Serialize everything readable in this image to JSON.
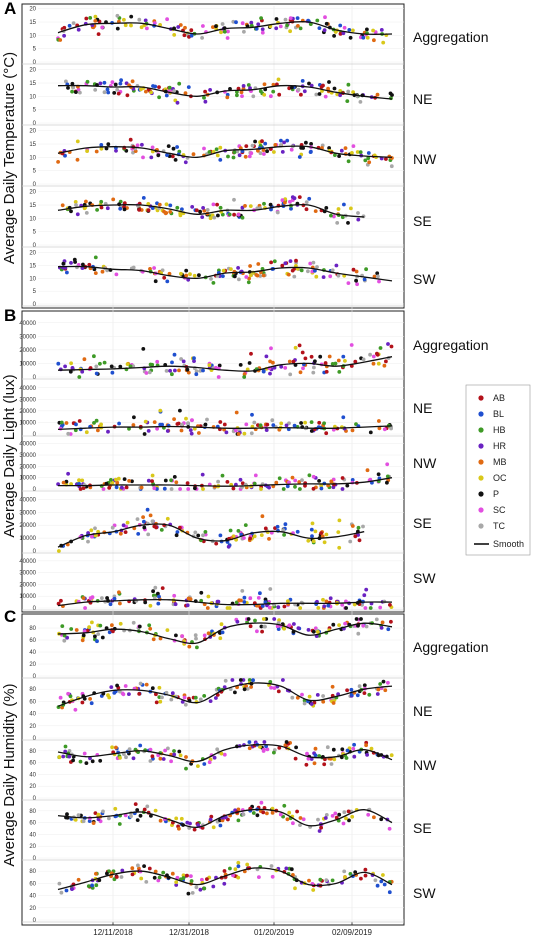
{
  "figure": {
    "legend": {
      "items": [
        {
          "label": "AB",
          "color": "#b3111a"
        },
        {
          "label": "BL",
          "color": "#1f4fcf"
        },
        {
          "label": "HB",
          "color": "#3e9a26"
        },
        {
          "label": "HR",
          "color": "#6a22c2"
        },
        {
          "label": "MB",
          "color": "#e06a12"
        },
        {
          "label": "OC",
          "color": "#d9c81a"
        },
        {
          "label": "P",
          "color": "#111111"
        },
        {
          "label": "SC",
          "color": "#e24fe0"
        },
        {
          "label": "TC",
          "color": "#a8a8a8"
        }
      ],
      "smooth_label": "Smooth"
    },
    "x_tick_labels": [
      "12/11/2018",
      "12/31/2018",
      "01/20/2019",
      "02/09/2019"
    ]
  },
  "chart_data": [
    {
      "type": "scatter",
      "panel": "A",
      "ylabel": "Average Daily Temperature (°C)",
      "rows": [
        "Aggregation",
        "NE",
        "NW",
        "SE",
        "SW"
      ],
      "yticks": [
        0,
        5,
        10,
        15,
        20
      ],
      "ylim": [
        0,
        21
      ],
      "x": [
        "2018-11-27",
        "2018-12-04",
        "2018-12-11",
        "2018-12-18",
        "2018-12-25",
        "2018-12-31",
        "2019-01-07",
        "2019-01-14",
        "2019-01-20",
        "2019-01-27",
        "2019-02-03",
        "2019-02-09",
        "2019-02-16"
      ],
      "smooth": [
        [
          11,
          14,
          14.5,
          14.5,
          12.5,
          10.5,
          12.5,
          13,
          14.5,
          15,
          12,
          10.5,
          10.5
        ],
        [
          14,
          14,
          13.5,
          13.5,
          11.5,
          10,
          12,
          12.5,
          14,
          13.5,
          11.5,
          10,
          9
        ],
        [
          11.5,
          13.5,
          14,
          13.5,
          11.5,
          10,
          12.5,
          13,
          14,
          14,
          11.5,
          10.5,
          10
        ],
        [
          13,
          14.5,
          15,
          15,
          13.5,
          11.5,
          13,
          13,
          14.5,
          15,
          11.5,
          10.5,
          null
        ],
        [
          14.5,
          14.5,
          13.5,
          13,
          11,
          10,
          12,
          12.5,
          14,
          14,
          12,
          10.5,
          9
        ]
      ],
      "y_scatter_range": [
        4,
        20
      ],
      "grid": true
    },
    {
      "type": "scatter",
      "panel": "B",
      "ylabel": "Average Daily Light (lux)",
      "rows": [
        "Aggregation",
        "NE",
        "NW",
        "SE",
        "SW"
      ],
      "yticks": [
        0,
        10000,
        20000,
        30000,
        40000
      ],
      "ylim": [
        0,
        45000
      ],
      "x": [
        "2018-11-27",
        "2018-12-04",
        "2018-12-11",
        "2018-12-18",
        "2018-12-25",
        "2018-12-31",
        "2019-01-07",
        "2019-01-14",
        "2019-01-20",
        "2019-01-27",
        "2019-02-03",
        "2019-02-09",
        "2019-02-16"
      ],
      "smooth": [
        [
          5000,
          5500,
          6000,
          7000,
          8000,
          7000,
          5000,
          4500,
          9000,
          10000,
          8000,
          11000,
          15000
        ],
        [
          4000,
          5000,
          6000,
          6000,
          6500,
          6000,
          5000,
          5000,
          5500,
          5000,
          5000,
          6000,
          7000
        ],
        [
          3000,
          3000,
          3500,
          3500,
          3500,
          3000,
          2500,
          3000,
          4000,
          4500,
          4500,
          6000,
          10000
        ],
        [
          3000,
          12000,
          15000,
          20000,
          20000,
          10000,
          8000,
          14000,
          15000,
          10000,
          11000,
          15000,
          null
        ],
        [
          2000,
          5000,
          6000,
          7000,
          7000,
          5000,
          3000,
          3000,
          4000,
          4000,
          4000,
          5000,
          5000
        ]
      ],
      "y_scatter_range": [
        0,
        35000
      ],
      "grid": true
    },
    {
      "type": "scatter",
      "panel": "C",
      "ylabel": "Average Daily Humidity (%)",
      "rows": [
        "Aggregation",
        "NE",
        "NW",
        "SE",
        "SW"
      ],
      "yticks": [
        0,
        20,
        40,
        60,
        80
      ],
      "ylim": [
        0,
        95
      ],
      "x": [
        "2018-11-27",
        "2018-12-04",
        "2018-12-11",
        "2018-12-18",
        "2018-12-25",
        "2018-12-31",
        "2019-01-07",
        "2019-01-14",
        "2019-01-20",
        "2019-01-27",
        "2019-02-03",
        "2019-02-09",
        "2019-02-16"
      ],
      "smooth": [
        [
          70,
          72,
          78,
          74,
          62,
          55,
          80,
          88,
          85,
          68,
          78,
          88,
          82
        ],
        [
          52,
          68,
          78,
          78,
          70,
          58,
          80,
          90,
          85,
          62,
          68,
          80,
          85
        ],
        [
          78,
          70,
          75,
          80,
          72,
          62,
          82,
          90,
          88,
          70,
          70,
          82,
          65
        ],
        [
          72,
          68,
          72,
          78,
          65,
          52,
          72,
          82,
          78,
          55,
          65,
          82,
          60
        ],
        [
          50,
          62,
          75,
          80,
          70,
          58,
          72,
          85,
          80,
          58,
          60,
          78,
          58
        ]
      ],
      "y_scatter_range": [
        35,
        95
      ],
      "grid": true
    }
  ]
}
